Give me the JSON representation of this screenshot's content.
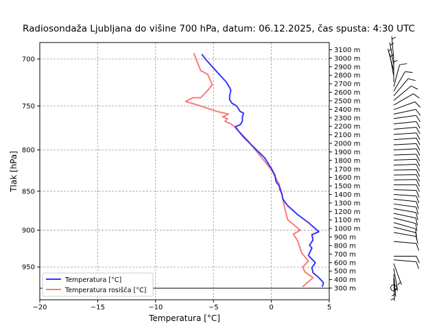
{
  "chart_data": {
    "type": "line",
    "title": "Radiosondaža Ljubljana do višine 700 hPa, datum: 06.12.2025, čas spusta: 4:30 UTC",
    "xlabel": "Temperatura [°C]",
    "ylabel": "Tlak [hPa]",
    "xlim": [
      -20,
      5
    ],
    "ylim": [
      996,
      683
    ],
    "y_scale": "log",
    "grid": true,
    "x_ticks": [
      -20,
      -15,
      -10,
      -5,
      0,
      5
    ],
    "x_tick_labels": [
      "−20",
      "−15",
      "−10",
      "−5",
      "0",
      "5"
    ],
    "y_ticks": [
      700,
      750,
      800,
      850,
      900,
      950
    ],
    "y_tick_labels": [
      "700",
      "750",
      "800",
      "850",
      "900",
      "950"
    ],
    "legend_position": "lower-left",
    "surface_pressure": 980,
    "height_axis_labels": [
      "3100 m",
      "3000 m",
      "2900 m",
      "2800 m",
      "2700 m",
      "2600 m",
      "2500 m",
      "2400 m",
      "2300 m",
      "2200 m",
      "2100 m",
      "2000 m",
      "1900 m",
      "1800 m",
      "1700 m",
      "1600 m",
      "1500 m",
      "1400 m",
      "1300 m",
      "1200 m",
      "1100 m",
      "1000 m",
      "900 m",
      "800 m",
      "700 m",
      "600 m",
      "500 m",
      "400 m",
      "300 m"
    ],
    "series": [
      {
        "name": "Temperatura [°C]",
        "color": "#3333ff",
        "points": [
          [
            695,
            -6.0
          ],
          [
            700,
            -5.7
          ],
          [
            708,
            -5.1
          ],
          [
            716,
            -4.5
          ],
          [
            724,
            -3.9
          ],
          [
            730,
            -3.6
          ],
          [
            733,
            -3.5
          ],
          [
            739,
            -3.6
          ],
          [
            743,
            -3.6
          ],
          [
            747,
            -3.4
          ],
          [
            750,
            -3.0
          ],
          [
            756,
            -2.7
          ],
          [
            758,
            -2.4
          ],
          [
            762,
            -2.5
          ],
          [
            767,
            -2.5
          ],
          [
            771,
            -2.7
          ],
          [
            773,
            -3.1
          ],
          [
            777,
            -2.9
          ],
          [
            785,
            -2.4
          ],
          [
            793,
            -1.8
          ],
          [
            801,
            -1.2
          ],
          [
            809,
            -0.6
          ],
          [
            822,
            0.0
          ],
          [
            830,
            0.3
          ],
          [
            838,
            0.4
          ],
          [
            844,
            0.7
          ],
          [
            853,
            0.9
          ],
          [
            860,
            1.0
          ],
          [
            868,
            1.4
          ],
          [
            880,
            2.3
          ],
          [
            890,
            3.2
          ],
          [
            902,
            4.1
          ],
          [
            906,
            3.5
          ],
          [
            913,
            3.6
          ],
          [
            920,
            3.3
          ],
          [
            924,
            3.5
          ],
          [
            934,
            3.2
          ],
          [
            944,
            3.8
          ],
          [
            951,
            3.5
          ],
          [
            958,
            3.6
          ],
          [
            965,
            4.1
          ],
          [
            972,
            4.5
          ],
          [
            978,
            4.4
          ]
        ]
      },
      {
        "name": "Temperatura rosišča [°C]",
        "color": "#ff7777",
        "points": [
          [
            694,
            -6.7
          ],
          [
            712,
            -6.1
          ],
          [
            716,
            -5.5
          ],
          [
            727,
            -5.1
          ],
          [
            733,
            -5.5
          ],
          [
            741,
            -6.1
          ],
          [
            741,
            -6.8
          ],
          [
            745,
            -7.4
          ],
          [
            750,
            -6.1
          ],
          [
            756,
            -4.7
          ],
          [
            759,
            -3.7
          ],
          [
            762,
            -4.2
          ],
          [
            764,
            -3.8
          ],
          [
            767,
            -4.0
          ],
          [
            770,
            -3.5
          ],
          [
            772,
            -3.3
          ],
          [
            788,
            -2.1
          ],
          [
            820,
            -0.2
          ],
          [
            826,
            0.1
          ],
          [
            842,
            0.7
          ],
          [
            848,
            0.7
          ],
          [
            853,
            0.9
          ],
          [
            868,
            1.1
          ],
          [
            886,
            1.4
          ],
          [
            900,
            2.5
          ],
          [
            905,
            1.9
          ],
          [
            915,
            2.3
          ],
          [
            930,
            2.6
          ],
          [
            942,
            3.2
          ],
          [
            950,
            2.7
          ],
          [
            957,
            2.9
          ],
          [
            965,
            3.6
          ],
          [
            978,
            2.7
          ]
        ]
      }
    ],
    "wind_barbs": {
      "units": "kt",
      "levels": [
        {
          "p": 700,
          "dir": 355,
          "speed": 5
        },
        {
          "p": 706,
          "dir": 350,
          "speed": 5
        },
        {
          "p": 712,
          "dir": 345,
          "speed": 5
        },
        {
          "p": 718,
          "dir": 350,
          "speed": 5
        },
        {
          "p": 724,
          "dir": 0,
          "speed": 5
        },
        {
          "p": 729,
          "dir": 15,
          "speed": 10
        },
        {
          "p": 734,
          "dir": 30,
          "speed": 10
        },
        {
          "p": 739,
          "dir": 40,
          "speed": 10
        },
        {
          "p": 744,
          "dir": 50,
          "speed": 10
        },
        {
          "p": 749,
          "dir": 60,
          "speed": 10
        },
        {
          "p": 754,
          "dir": 70,
          "speed": 10
        },
        {
          "p": 759,
          "dir": 78,
          "speed": 10
        },
        {
          "p": 764,
          "dir": 82,
          "speed": 10
        },
        {
          "p": 770,
          "dir": 84,
          "speed": 10
        },
        {
          "p": 776,
          "dir": 85,
          "speed": 10
        },
        {
          "p": 782,
          "dir": 86,
          "speed": 10
        },
        {
          "p": 788,
          "dir": 86,
          "speed": 10
        },
        {
          "p": 794,
          "dir": 87,
          "speed": 10
        },
        {
          "p": 800,
          "dir": 87,
          "speed": 10
        },
        {
          "p": 806,
          "dir": 88,
          "speed": 10
        },
        {
          "p": 812,
          "dir": 88,
          "speed": 10
        },
        {
          "p": 818,
          "dir": 88,
          "speed": 10
        },
        {
          "p": 824,
          "dir": 89,
          "speed": 10
        },
        {
          "p": 830,
          "dir": 89,
          "speed": 10
        },
        {
          "p": 836,
          "dir": 89,
          "speed": 10
        },
        {
          "p": 842,
          "dir": 90,
          "speed": 10
        },
        {
          "p": 848,
          "dir": 92,
          "speed": 10
        },
        {
          "p": 854,
          "dir": 94,
          "speed": 10
        },
        {
          "p": 860,
          "dir": 96,
          "speed": 10
        },
        {
          "p": 866,
          "dir": 98,
          "speed": 10
        },
        {
          "p": 872,
          "dir": 100,
          "speed": 10
        },
        {
          "p": 878,
          "dir": 102,
          "speed": 10
        },
        {
          "p": 884,
          "dir": 104,
          "speed": 10
        },
        {
          "p": 890,
          "dir": 106,
          "speed": 10
        },
        {
          "p": 896,
          "dir": 104,
          "speed": 10
        },
        {
          "p": 903,
          "dir": 100,
          "speed": 10
        },
        {
          "p": 915,
          "dir": 95,
          "speed": 10
        },
        {
          "p": 935,
          "dir": 90,
          "speed": 10
        },
        {
          "p": 940,
          "dir": 95,
          "speed": 10
        },
        {
          "p": 945,
          "dir": 160,
          "speed": 5
        },
        {
          "p": 952,
          "dir": 170,
          "speed": 5
        },
        {
          "p": 960,
          "dir": 175,
          "speed": 5
        },
        {
          "p": 966,
          "dir": 178,
          "speed": 5
        }
      ],
      "surface": {
        "p": 980,
        "calm": true
      }
    }
  }
}
